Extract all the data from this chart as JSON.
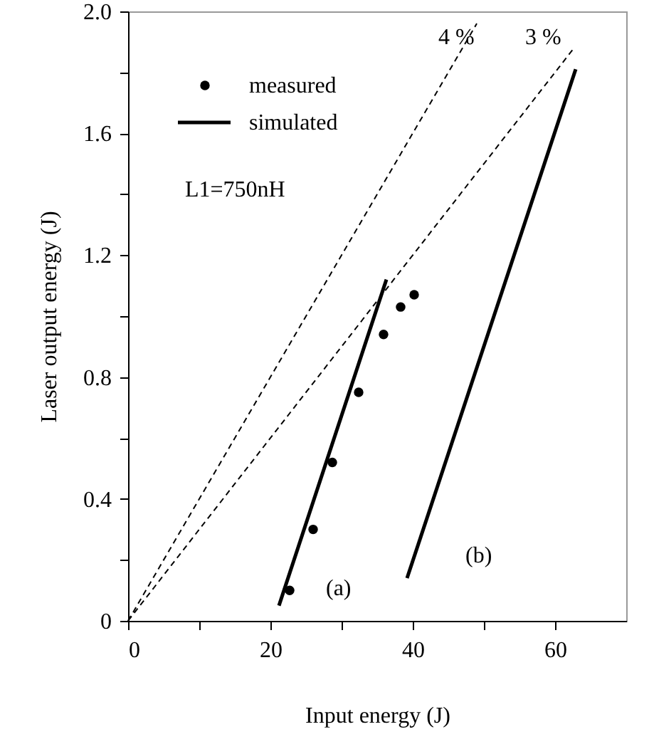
{
  "chart_data": {
    "type": "line",
    "xlabel": "Input energy (J)",
    "ylabel": "Laser output energy (J)",
    "xlim": [
      0,
      70
    ],
    "ylim": [
      0,
      2.0
    ],
    "xticks": [
      0,
      {
        "value": 10,
        "label": null
      },
      20,
      {
        "value": 30,
        "label": null
      },
      40,
      {
        "value": 50,
        "label": null
      },
      60
    ],
    "yticks": [
      0,
      {
        "value": 0.2,
        "label": null
      },
      0.4,
      {
        "value": 0.6,
        "label": null
      },
      0.8,
      {
        "value": 1.0,
        "label": null
      },
      {
        "value": 1.2,
        "label": "1.2"
      },
      {
        "value": 1.4,
        "label": null
      },
      1.6,
      {
        "value": 1.8,
        "label": null
      },
      {
        "value": 2.0,
        "label": "2.0"
      }
    ],
    "grid": false,
    "legend": "top left",
    "series": [
      {
        "name": "measured",
        "type": "scatter",
        "marker": "circle",
        "color": "#000000",
        "x": [
          22.7,
          26.0,
          28.7,
          32.4,
          35.9,
          38.3,
          40.2
        ],
        "values": [
          0.1,
          0.3,
          0.52,
          0.75,
          0.94,
          1.03,
          1.07
        ]
      },
      {
        "name": "simulated",
        "line_style": "solid",
        "color": "#000000",
        "x": [
          21.2,
          36.3
        ],
        "values": [
          0.05,
          1.12
        ]
      },
      {
        "line_style": "solid",
        "color": "#000000",
        "x": [
          39.2,
          62.9
        ],
        "values": [
          0.14,
          1.81
        ]
      },
      {
        "line_style": "dashed",
        "color": "#000000",
        "x": [
          0,
          49
        ],
        "values": [
          0,
          1.96
        ]
      },
      {
        "line_style": "dashed",
        "color": "#000000",
        "x": [
          0,
          62.5
        ],
        "values": [
          0,
          1.875
        ]
      }
    ],
    "annotations": [
      "4 %",
      "3 %",
      "(a)",
      "(b)",
      "L1=750nH"
    ]
  }
}
